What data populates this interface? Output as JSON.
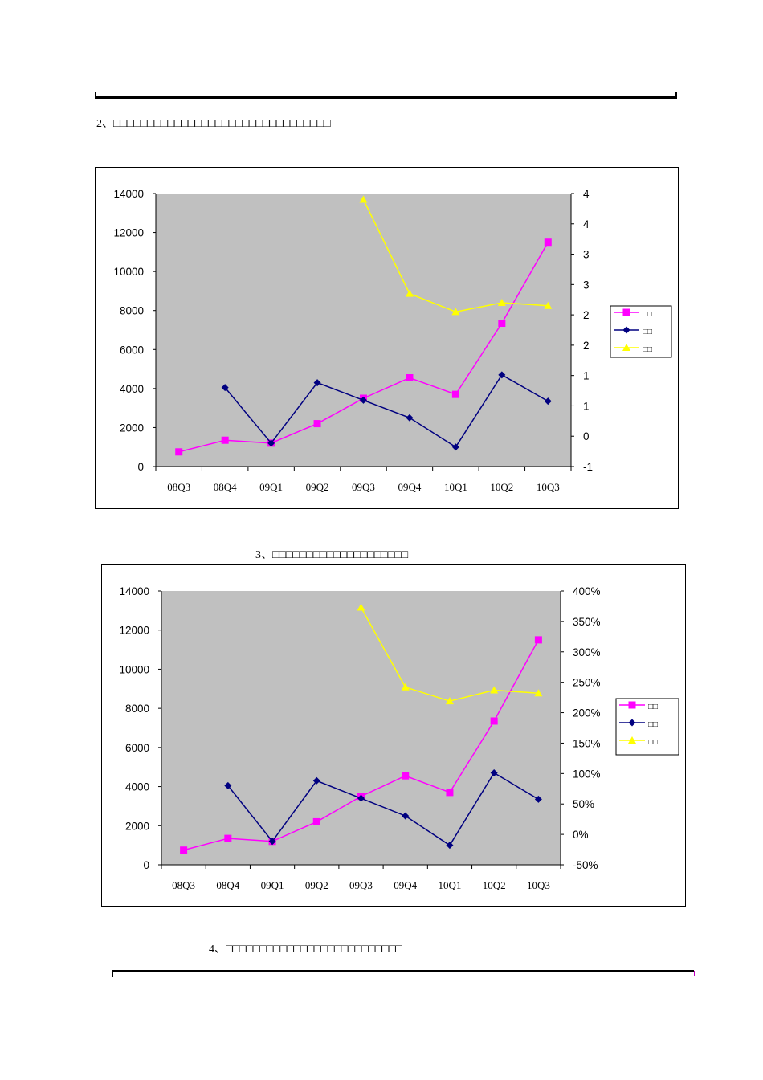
{
  "captions": {
    "caption2": "2、□□□□□□□□□□□□□□□□□□□□□□□□□□□□□□□□",
    "caption3": "3、□□□□□□□□□□□□□□□□□□□□",
    "caption4": "4、□□□□□□□□□□□□□□□□□□□□□□□□□□"
  },
  "colors": {
    "series1": "#FF00FF",
    "series2": "#000080",
    "series3": "#FFFF00",
    "plot_bg": "#C0C0C0"
  },
  "chart_data": [
    {
      "type": "line",
      "categories": [
        "08Q3",
        "08Q4",
        "09Q1",
        "09Q2",
        "09Q3",
        "09Q4",
        "10Q1",
        "10Q2",
        "10Q3"
      ],
      "ylim": [
        0,
        14000
      ],
      "yticks": [
        "14000",
        "12000",
        "10000",
        "8000",
        "6000",
        "4000",
        "2000",
        "0"
      ],
      "y2lim": [
        -0.5,
        4
      ],
      "y2ticks": [
        "4",
        "4",
        "3",
        "3",
        "2",
        "2",
        "1",
        "1",
        "0",
        "-1"
      ],
      "legend_position": "right",
      "grid": false,
      "series": [
        {
          "name": "□□",
          "axis": "left",
          "marker": "square",
          "values": [
            750,
            1350,
            1200,
            2200,
            3500,
            4550,
            3700,
            7350,
            11500
          ]
        },
        {
          "name": "□□",
          "axis": "left",
          "marker": "diamond",
          "values": [
            null,
            4050,
            1200,
            4300,
            3400,
            2500,
            1000,
            4700,
            3350
          ]
        },
        {
          "name": "□□",
          "axis": "right",
          "marker": "triangle",
          "values": [
            null,
            null,
            null,
            null,
            3.9,
            2.35,
            2.05,
            2.2,
            2.15
          ]
        }
      ]
    },
    {
      "type": "line",
      "categories": [
        "08Q3",
        "08Q4",
        "09Q1",
        "09Q2",
        "09Q3",
        "09Q4",
        "10Q1",
        "10Q2",
        "10Q3"
      ],
      "ylim": [
        0,
        14000
      ],
      "yticks": [
        "14000",
        "12000",
        "10000",
        "8000",
        "6000",
        "4000",
        "2000",
        "0"
      ],
      "y2lim": [
        -0.5,
        4
      ],
      "y2ticks": [
        "400%",
        "350%",
        "300%",
        "250%",
        "200%",
        "150%",
        "100%",
        "50%",
        "0%",
        "-50%"
      ],
      "legend_position": "right",
      "grid": false,
      "series": [
        {
          "name": "□□",
          "axis": "left",
          "marker": "square",
          "values": [
            750,
            1350,
            1200,
            2200,
            3500,
            4550,
            3700,
            7350,
            11500
          ]
        },
        {
          "name": "□□",
          "axis": "left",
          "marker": "diamond",
          "values": [
            null,
            4050,
            1200,
            4300,
            3400,
            2500,
            1000,
            4700,
            3350
          ]
        },
        {
          "name": "□□",
          "axis": "right",
          "marker": "triangle",
          "values": [
            null,
            null,
            null,
            null,
            3.73,
            2.42,
            2.19,
            2.37,
            2.32
          ]
        }
      ]
    }
  ]
}
